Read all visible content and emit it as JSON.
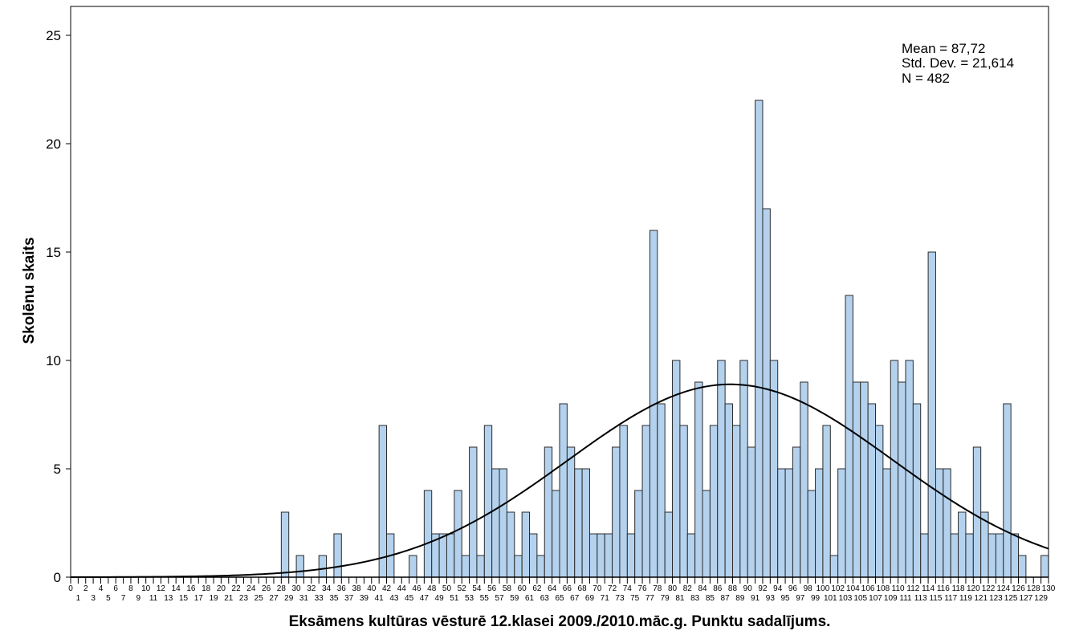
{
  "chart_data": {
    "type": "bar",
    "subtype": "histogram",
    "title": "",
    "xlabel": "Eksāmens kultūras vēsturē 12.klasei 2009./2010.māc.g. Punktu sadalījums.",
    "ylabel": "Skolēnu skaits",
    "xlim": [
      0,
      130
    ],
    "ylim": [
      0,
      25
    ],
    "yticks": [
      0,
      5,
      10,
      15,
      20,
      25
    ],
    "xtick_step": 1,
    "bin_width": 1,
    "grid": false,
    "legend": null,
    "bar_color": "#b4d2ee",
    "stats": {
      "mean_label": "Mean = 87,72",
      "std_label": "Std. Dev. = 21,614",
      "n_label": "N = 482",
      "mean": 87.72,
      "std": 21.614,
      "n": 482,
      "placement": "top-right"
    },
    "normal_curve": true,
    "bins_start": 0,
    "values": [
      0,
      0,
      0,
      0,
      0,
      0,
      0,
      0,
      0,
      0,
      0,
      0,
      0,
      0,
      0,
      0,
      0,
      0,
      0,
      0,
      0,
      0,
      0,
      0,
      0,
      0,
      0,
      0,
      3,
      0,
      1,
      0,
      0,
      1,
      0,
      2,
      0,
      0,
      0,
      0,
      0,
      7,
      2,
      0,
      0,
      1,
      0,
      4,
      2,
      2,
      2,
      4,
      1,
      6,
      1,
      7,
      5,
      5,
      3,
      1,
      3,
      2,
      1,
      6,
      4,
      8,
      6,
      5,
      5,
      2,
      2,
      2,
      6,
      7,
      2,
      4,
      7,
      16,
      8,
      3,
      10,
      7,
      2,
      9,
      4,
      7,
      10,
      8,
      7,
      10,
      6,
      22,
      17,
      10,
      5,
      5,
      6,
      9,
      4,
      5,
      7,
      1,
      5,
      13,
      9,
      9,
      8,
      7,
      5,
      10,
      9,
      10,
      8,
      2,
      15,
      5,
      5,
      2,
      3,
      2,
      6,
      3,
      2,
      2,
      8,
      2,
      1,
      0,
      0,
      1
    ]
  }
}
